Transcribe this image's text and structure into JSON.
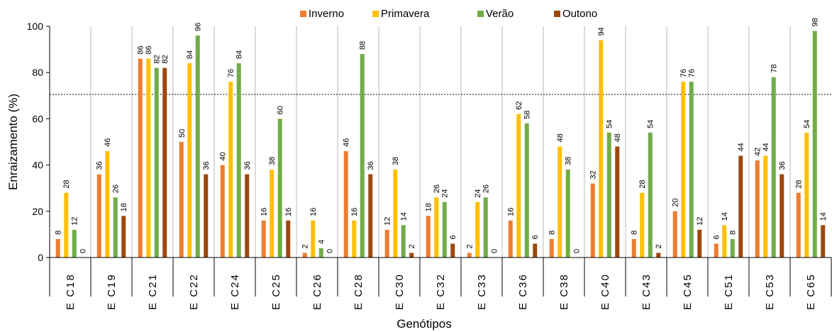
{
  "chart_data": {
    "type": "bar",
    "xlabel": "Genótipos",
    "ylabel": "Enraizamento (%)",
    "ylim": [
      0,
      100
    ],
    "yticks": [
      0,
      20,
      40,
      60,
      80,
      100
    ],
    "reference_line": 70.5,
    "legend_position": "top-center",
    "categories": [
      "E C18",
      "E C19",
      "E C21",
      "E C22",
      "E C24",
      "E C25",
      "E C26",
      "E C28",
      "E C30",
      "E C32",
      "E C33",
      "E C36",
      "E C38",
      "E C40",
      "E C43",
      "E C45",
      "E C51",
      "E C53",
      "E C65"
    ],
    "series": [
      {
        "name": "Inverno",
        "color": "#ED7D31",
        "values": [
          8,
          36,
          86,
          50,
          40,
          16,
          2,
          46,
          12,
          18,
          2,
          16,
          8,
          32,
          8,
          20,
          6,
          42,
          28
        ]
      },
      {
        "name": "Primavera",
        "color": "#FFC000",
        "values": [
          28,
          46,
          86,
          84,
          76,
          38,
          16,
          16,
          38,
          26,
          24,
          62,
          48,
          94,
          28,
          76,
          14,
          44,
          54
        ]
      },
      {
        "name": "Verão",
        "color": "#70AD47",
        "values": [
          12,
          26,
          82,
          96,
          84,
          60,
          4,
          88,
          14,
          24,
          26,
          58,
          38,
          54,
          54,
          76,
          8,
          78,
          98
        ]
      },
      {
        "name": "Outono",
        "color": "#9E480E",
        "values": [
          0,
          18,
          82,
          36,
          36,
          16,
          0,
          36,
          2,
          6,
          0,
          6,
          0,
          48,
          2,
          12,
          44,
          36,
          14
        ]
      }
    ]
  }
}
